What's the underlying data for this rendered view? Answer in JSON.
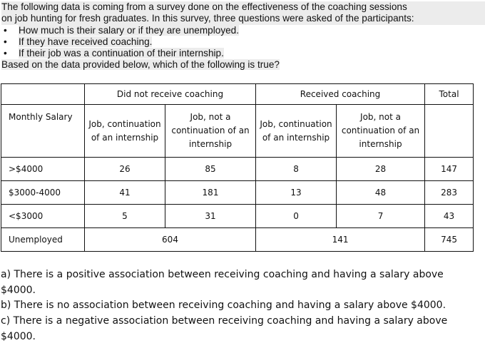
{
  "intro": {
    "para_line1": "The following data is coming from a survey done on the effectiveness of the coaching sessions",
    "para_line2": "on job hunting for fresh graduates. In this survey, three questions were asked of the participants:",
    "bullets": [
      "How much is their salary or if they are unemployed.",
      "If they have received coaching.",
      "If their job was a continuation of their internship."
    ],
    "question": "Based on the data provided below, which of the following is true?"
  },
  "table": {
    "group_headers": [
      "Did not receive coaching",
      "Received coaching"
    ],
    "total_header": "Total",
    "row_header_label": "Monthly Salary",
    "sub_headers": [
      "Job, continuation of an internship",
      "Job, not a continuation of an internship",
      "Job, continuation of an internship",
      "Job, not a continuation of an internship"
    ],
    "rows": [
      {
        "label": ">$4000",
        "values": [
          "26",
          "85",
          "8",
          "28"
        ],
        "total": "147"
      },
      {
        "label": "$3000-4000",
        "values": [
          "41",
          "181",
          "13",
          "48"
        ],
        "total": "283"
      },
      {
        "label": "<$3000",
        "values": [
          "5",
          "31",
          "0",
          "7"
        ],
        "total": "43"
      }
    ],
    "unemployed": {
      "label": "Unemployed",
      "no_coaching": "604",
      "coaching": "141",
      "total": "745"
    }
  },
  "choices": [
    "a) There is a positive association between receiving coaching and having a salary above $4000.",
    "b) There is no association between receiving coaching and having a salary above $4000.",
    "c) There is a negative association between receiving coaching and having a salary above $4000."
  ]
}
